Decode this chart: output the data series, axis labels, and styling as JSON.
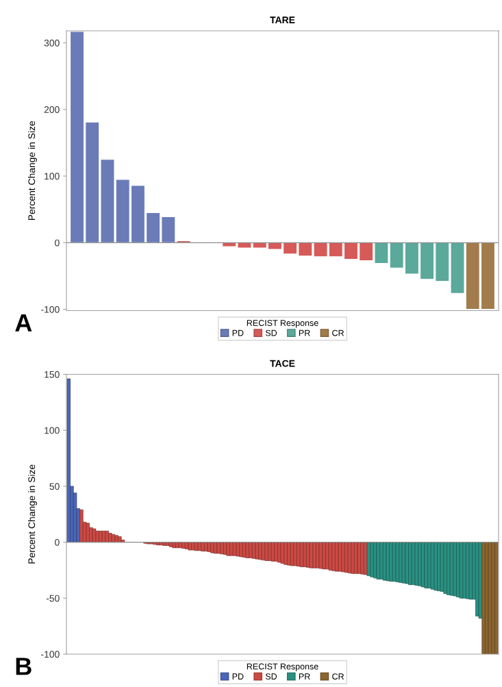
{
  "chart_data": [
    {
      "type": "bar",
      "title": "TARE",
      "ylabel": "Percent Change in Size",
      "legend_title": "RECIST Response",
      "annotations": [
        "A"
      ],
      "categories": [
        null,
        null,
        null,
        null,
        null,
        null,
        null,
        null,
        null,
        null,
        null,
        null,
        null,
        null,
        null,
        null,
        null,
        null,
        null,
        null,
        null,
        null,
        null,
        null,
        null,
        null,
        null,
        null
      ],
      "series": [
        {
          "name": "PD",
          "color": "#6a7bb8",
          "values": [
            317,
            181,
            125,
            95,
            86,
            45,
            39,
            null,
            null,
            null,
            null,
            null,
            null,
            null,
            null,
            null,
            null,
            null,
            null,
            null,
            null,
            null,
            null,
            null,
            null,
            null,
            null,
            null
          ]
        },
        {
          "name": "SD",
          "color": "#d65a58",
          "values": [
            null,
            null,
            null,
            null,
            null,
            null,
            null,
            3,
            0,
            0,
            -6,
            -8,
            -8,
            -10,
            -17,
            -20,
            -21,
            -21,
            -25,
            -27,
            null,
            null,
            null,
            null,
            null,
            null,
            null,
            null
          ]
        },
        {
          "name": "PR",
          "color": "#5aa99b",
          "values": [
            null,
            null,
            null,
            null,
            null,
            null,
            null,
            null,
            null,
            null,
            null,
            null,
            null,
            null,
            null,
            null,
            null,
            null,
            null,
            null,
            -31,
            -38,
            -47,
            -55,
            -58,
            -76,
            null,
            null
          ]
        },
        {
          "name": "CR",
          "color": "#a27c4c",
          "values": [
            null,
            null,
            null,
            null,
            null,
            null,
            null,
            null,
            null,
            null,
            null,
            null,
            null,
            null,
            null,
            null,
            null,
            null,
            null,
            null,
            null,
            null,
            null,
            null,
            null,
            null,
            -100,
            -100
          ]
        }
      ],
      "ylim": [
        -102,
        318
      ],
      "yticks": [
        -100,
        0,
        100,
        200,
        300
      ],
      "tick_labels": "y",
      "legend": "bottom",
      "ref_lines": [
        {
          "axis": "y",
          "value": 0,
          "color": "#8c8c8c"
        }
      ]
    },
    {
      "type": "bar",
      "title": "TACE",
      "ylabel": "Percent Change in Size",
      "legend_title": "RECIST Response",
      "annotations": [
        "B"
      ],
      "categories": [
        null,
        null,
        null,
        null,
        null,
        null,
        null,
        null,
        null,
        null,
        null,
        null,
        null,
        null,
        null,
        null,
        null,
        null,
        null,
        null,
        null,
        null,
        null,
        null,
        null,
        null,
        null,
        null,
        null,
        null,
        null,
        null,
        null,
        null,
        null,
        null,
        null,
        null,
        null,
        null,
        null,
        null,
        null,
        null,
        null,
        null,
        null,
        null,
        null,
        null,
        null,
        null,
        null,
        null,
        null,
        null,
        null,
        null,
        null,
        null,
        null,
        null,
        null,
        null,
        null,
        null,
        null,
        null,
        null,
        null,
        null,
        null,
        null,
        null,
        null,
        null,
        null,
        null,
        null,
        null,
        null,
        null,
        null,
        null,
        null,
        null,
        null,
        null,
        null,
        null,
        null,
        null,
        null,
        null,
        null,
        null,
        null,
        null,
        null,
        null,
        null,
        null,
        null,
        null,
        null,
        null,
        null,
        null,
        null,
        null,
        null,
        null,
        null,
        null,
        null,
        null,
        null,
        null,
        null,
        null,
        null,
        null,
        null,
        null,
        null,
        null,
        null,
        null,
        null,
        null,
        null,
        null,
        null,
        null,
        null
      ],
      "series": [
        {
          "name": "PD",
          "color": "#4a66b8",
          "values": [
            146,
            50,
            44,
            30,
            null,
            null,
            null,
            null,
            null,
            null,
            null,
            null,
            null,
            null,
            null,
            null,
            null,
            null,
            null,
            null,
            null,
            null,
            null,
            null,
            null,
            null,
            null,
            null,
            null,
            null,
            null,
            null,
            null,
            null,
            null,
            null,
            null,
            null,
            null,
            null,
            null,
            null,
            null,
            null,
            null,
            null,
            null,
            null,
            null,
            null,
            null,
            null,
            null,
            null,
            null,
            null,
            null,
            null,
            null,
            null,
            null,
            null,
            null,
            null,
            null,
            null,
            null,
            null,
            null,
            null,
            null,
            null,
            null,
            null,
            null,
            null,
            null,
            null,
            null,
            null,
            null,
            null,
            null,
            null,
            null,
            null,
            null,
            null,
            null,
            null,
            null,
            null,
            null,
            null,
            null,
            null,
            null,
            null,
            null,
            null,
            null,
            null,
            null,
            null,
            null,
            null,
            null,
            null,
            null,
            null,
            null,
            null,
            null,
            null,
            null,
            null,
            null,
            null,
            null,
            null,
            null,
            null,
            null,
            null,
            null,
            null,
            null,
            null,
            null,
            null,
            null,
            null,
            null,
            null,
            null
          ]
        },
        {
          "name": "SD",
          "color": "#cc4a44",
          "values": [
            null,
            null,
            null,
            null,
            29,
            18,
            17,
            13,
            12,
            10,
            10,
            10,
            10,
            8,
            7,
            6,
            5,
            2,
            0,
            0,
            0,
            0,
            0,
            0,
            -1,
            -1.5,
            -1.5,
            -2,
            -2.5,
            -2.5,
            -3,
            -3,
            -4,
            -5,
            -5,
            -5,
            -5.5,
            -6,
            -7,
            -7,
            -7.5,
            -7.5,
            -8,
            -8,
            -8.5,
            -9.5,
            -10,
            -10,
            -10.5,
            -11,
            -12,
            -12,
            -12,
            -12.5,
            -13,
            -13.5,
            -14,
            -14,
            -14.5,
            -15,
            -15.5,
            -16,
            -16.5,
            -16.5,
            -17,
            -17,
            -18,
            -19,
            -20,
            -20.5,
            -21,
            -21,
            -21.5,
            -22,
            -22,
            -22.5,
            -23,
            -23,
            -23,
            -23.5,
            -24,
            -24,
            -25,
            -25.5,
            -26,
            -26,
            -26.5,
            -27,
            -27.5,
            -28,
            -28,
            -28,
            -28.5,
            -29,
            null,
            null,
            null,
            null,
            null,
            null,
            null,
            null,
            null,
            null,
            null,
            null,
            null,
            null,
            null,
            null,
            null,
            null,
            null,
            null,
            null,
            null,
            null,
            null,
            null,
            null,
            null,
            null,
            null,
            null,
            null,
            null,
            null,
            null,
            null,
            null,
            null,
            null,
            null,
            null,
            null
          ]
        },
        {
          "name": "PR",
          "color": "#2a9082",
          "values": [
            null,
            null,
            null,
            null,
            null,
            null,
            null,
            null,
            null,
            null,
            null,
            null,
            null,
            null,
            null,
            null,
            null,
            null,
            null,
            null,
            null,
            null,
            null,
            null,
            null,
            null,
            null,
            null,
            null,
            null,
            null,
            null,
            null,
            null,
            null,
            null,
            null,
            null,
            null,
            null,
            null,
            null,
            null,
            null,
            null,
            null,
            null,
            null,
            null,
            null,
            null,
            null,
            null,
            null,
            null,
            null,
            null,
            null,
            null,
            null,
            null,
            null,
            null,
            null,
            null,
            null,
            null,
            null,
            null,
            null,
            null,
            null,
            null,
            null,
            null,
            null,
            null,
            null,
            null,
            null,
            null,
            null,
            null,
            null,
            null,
            null,
            null,
            null,
            null,
            null,
            null,
            null,
            null,
            null,
            -30,
            -31,
            -32,
            -33,
            -33,
            -34,
            -34.5,
            -35,
            -35,
            -35.5,
            -36,
            -36.5,
            -37,
            -38,
            -38,
            -38.5,
            -39,
            -40,
            -41,
            -41,
            -42,
            -43,
            -43.5,
            -44,
            -46,
            -47,
            -47.5,
            -48,
            -49,
            -50,
            -50,
            -50.5,
            -51,
            -51,
            -66,
            -68,
            null,
            null,
            null,
            null,
            null
          ]
        },
        {
          "name": "CR",
          "color": "#8c6530",
          "values": [
            null,
            null,
            null,
            null,
            null,
            null,
            null,
            null,
            null,
            null,
            null,
            null,
            null,
            null,
            null,
            null,
            null,
            null,
            null,
            null,
            null,
            null,
            null,
            null,
            null,
            null,
            null,
            null,
            null,
            null,
            null,
            null,
            null,
            null,
            null,
            null,
            null,
            null,
            null,
            null,
            null,
            null,
            null,
            null,
            null,
            null,
            null,
            null,
            null,
            null,
            null,
            null,
            null,
            null,
            null,
            null,
            null,
            null,
            null,
            null,
            null,
            null,
            null,
            null,
            null,
            null,
            null,
            null,
            null,
            null,
            null,
            null,
            null,
            null,
            null,
            null,
            null,
            null,
            null,
            null,
            null,
            null,
            null,
            null,
            null,
            null,
            null,
            null,
            null,
            null,
            null,
            null,
            null,
            null,
            null,
            null,
            null,
            null,
            null,
            null,
            null,
            null,
            null,
            null,
            null,
            null,
            null,
            null,
            null,
            null,
            null,
            null,
            null,
            null,
            null,
            null,
            null,
            null,
            null,
            null,
            null,
            null,
            null,
            null,
            null,
            null,
            null,
            null,
            null,
            null,
            -100,
            -100,
            -100,
            -100,
            -100
          ]
        }
      ],
      "ylim": [
        -100,
        150
      ],
      "yticks": [
        -100,
        -50,
        0,
        50,
        100,
        150
      ],
      "tick_labels": "y",
      "legend": "bottom",
      "ref_lines": [
        {
          "axis": "y",
          "value": 0,
          "color": "#8c8c8c"
        }
      ]
    }
  ]
}
